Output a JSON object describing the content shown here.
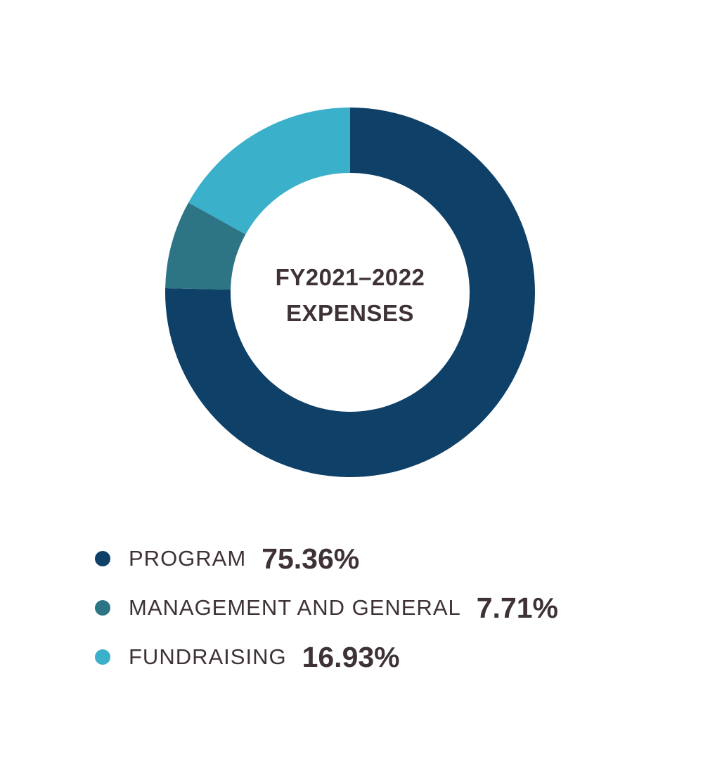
{
  "chart_data": {
    "type": "pie",
    "variant": "donut",
    "title_lines": [
      "FY2021–2022",
      "EXPENSES"
    ],
    "slices": [
      {
        "label": "PROGRAM",
        "value": 75.36,
        "value_label": "75.36%",
        "color": "#0e4068"
      },
      {
        "label": "MANAGEMENT AND GENERAL",
        "value": 7.71,
        "value_label": "7.71%",
        "color": "#2d7585"
      },
      {
        "label": "FUNDRAISING",
        "value": 16.93,
        "value_label": "16.93%",
        "color": "#3bb0ca"
      }
    ],
    "start": "12 o'clock",
    "direction": "clockwise",
    "legend_position": "bottom"
  }
}
